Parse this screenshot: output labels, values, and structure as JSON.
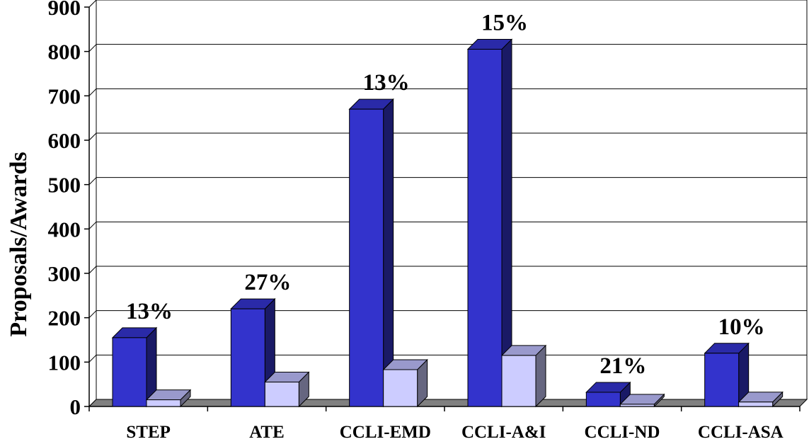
{
  "chart_data": {
    "type": "bar",
    "ylabel": "Proposals/Awards",
    "xlabel": "",
    "ylim": [
      0,
      900
    ],
    "yticks": [
      0,
      100,
      200,
      300,
      400,
      500,
      600,
      700,
      800,
      900
    ],
    "grid": true,
    "categories": [
      "STEP",
      "ATE",
      "CCLI-EMD",
      "CCLI-A&I",
      "CCLI-ND",
      "CCLI-ASA"
    ],
    "series": [
      {
        "values": [
          155,
          220,
          670,
          805,
          32,
          120
        ],
        "color": "#3333CC"
      },
      {
        "values": [
          15,
          55,
          83,
          115,
          5,
          10
        ],
        "color": "#CCCCFF"
      }
    ],
    "annotations": [
      "13%",
      "27%",
      "13%",
      "15%",
      "21%",
      "10%"
    ]
  }
}
